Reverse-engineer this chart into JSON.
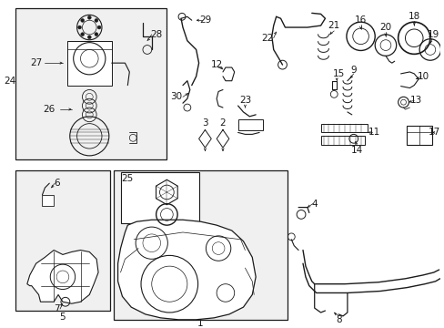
{
  "bg_color": "#ffffff",
  "line_color": "#1a1a1a",
  "box_fill": "#f0f0f0",
  "fig_width": 4.89,
  "fig_height": 3.6,
  "dpi": 100,
  "label_fs": 7.5,
  "label_fs_small": 6.5
}
